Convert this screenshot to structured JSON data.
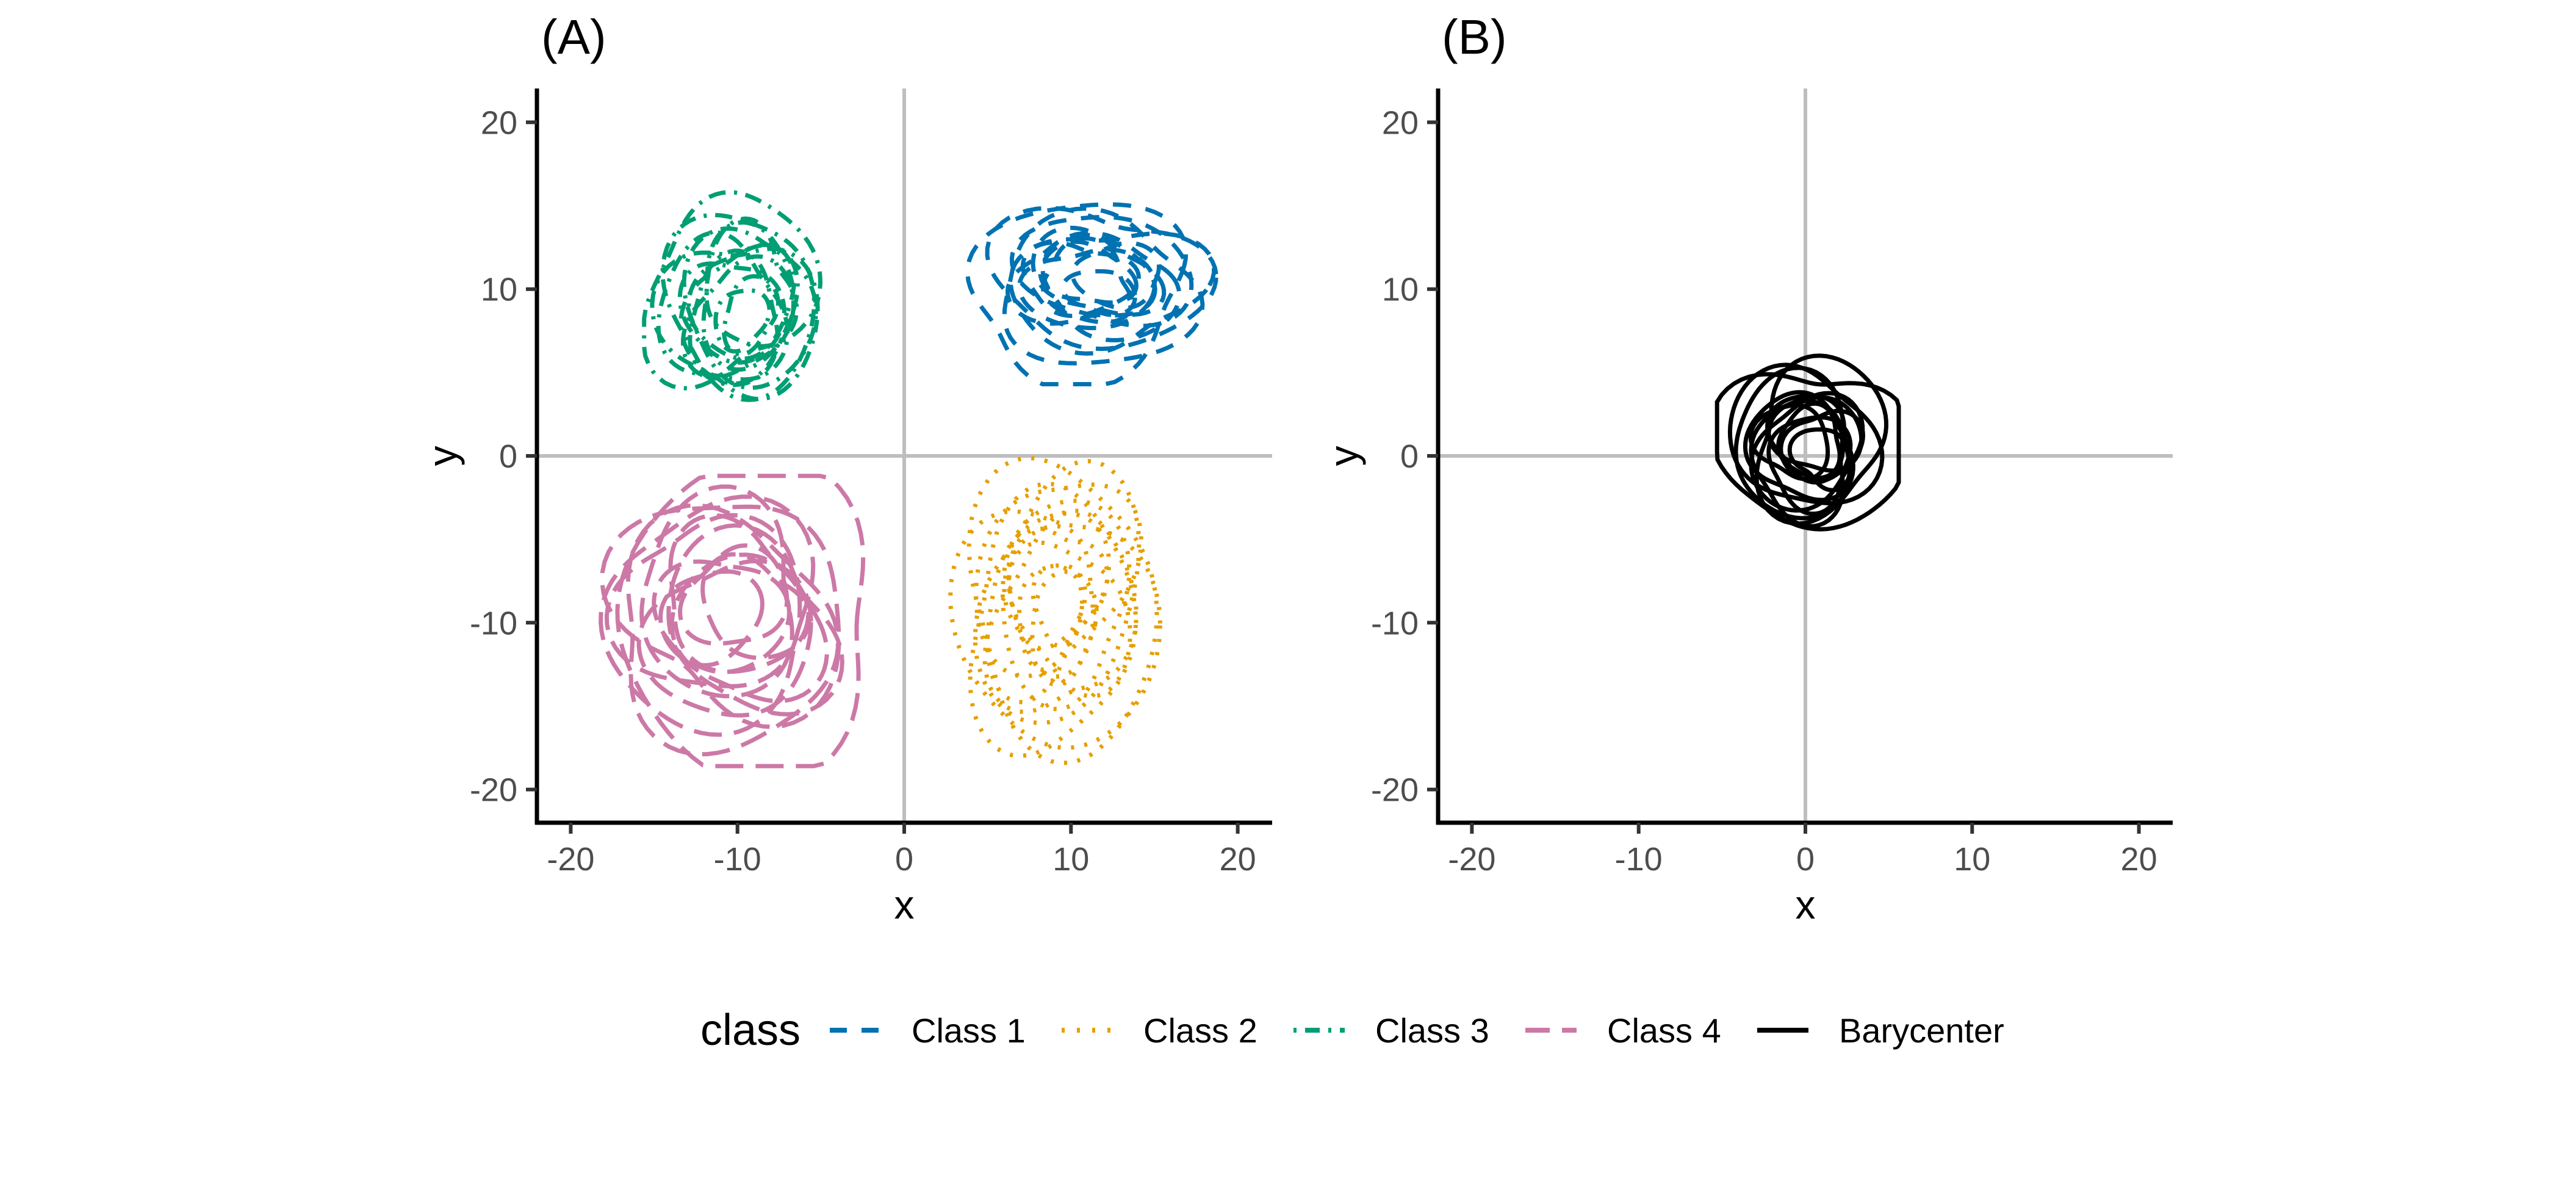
{
  "chart_data": [
    {
      "panel": "A",
      "type": "line",
      "title": "(A)",
      "xlabel": "x",
      "ylabel": "y",
      "xlim": [
        -22,
        22
      ],
      "ylim": [
        -22,
        22
      ],
      "xticks": [
        -20,
        -10,
        0,
        10,
        20
      ],
      "yticks": [
        -20,
        -10,
        0,
        10,
        20
      ],
      "xtick_labels": [
        "-20",
        "-10",
        "0",
        "10",
        "20"
      ],
      "ytick_labels": [
        "-20",
        "-10",
        "0",
        "10",
        "20"
      ],
      "reference_lines": {
        "x": 0,
        "y": 0
      },
      "grid": false,
      "series": [
        {
          "name": "Class 1",
          "linetype": "dashed",
          "color": "#0072B2",
          "n_curves": 14,
          "center": [
            10,
            10
          ],
          "radius": [
            5,
            5.5
          ],
          "xrange": [
            3.5,
            20
          ],
          "yrange": [
            4.3,
            16.3
          ],
          "seed": 11
        },
        {
          "name": "Class 2",
          "linetype": "dotted",
          "color": "#E69F00",
          "n_curves": 14,
          "center": [
            10,
            -8.5
          ],
          "radius": [
            5.2,
            6.5
          ],
          "xrange": [
            2.6,
            15.7
          ],
          "yrange": [
            -18.4,
            0.9
          ],
          "seed": 23
        },
        {
          "name": "Class 3",
          "linetype": "dotdash",
          "color": "#009E73",
          "n_curves": 14,
          "center": [
            -10,
            9.5
          ],
          "radius": [
            4.3,
            5.5
          ],
          "xrange": [
            -15.6,
            -4.5
          ],
          "yrange": [
            2.2,
            15.9
          ],
          "seed": 37
        },
        {
          "name": "Class 4",
          "linetype": "longdash",
          "color": "#CC79A7",
          "n_curves": 14,
          "center": [
            -10.5,
            -10
          ],
          "radius": [
            6.5,
            7.2
          ],
          "xrange": [
            -19,
            -1.6
          ],
          "yrange": [
            -18.6,
            -1.2
          ],
          "seed": 51
        }
      ]
    },
    {
      "panel": "B",
      "type": "line",
      "title": "(B)",
      "xlabel": "x",
      "ylabel": "y",
      "xlim": [
        -22,
        22
      ],
      "ylim": [
        -22,
        22
      ],
      "xticks": [
        -20,
        -10,
        0,
        10,
        20
      ],
      "yticks": [
        -20,
        -10,
        0,
        10,
        20
      ],
      "xtick_labels": [
        "-20",
        "-10",
        "0",
        "10",
        "20"
      ],
      "ytick_labels": [
        "-20",
        "-10",
        "0",
        "10",
        "20"
      ],
      "reference_lines": {
        "x": 0,
        "y": 0
      },
      "grid": false,
      "series": [
        {
          "name": "Barycenter",
          "linetype": "solid",
          "color": "#000000",
          "n_curves": 14,
          "center": [
            0,
            0
          ],
          "radius": [
            4.2,
            4.5
          ],
          "xrange": [
            -5.3,
            5.6
          ],
          "yrange": [
            -5.2,
            6.1
          ],
          "seed": 77
        }
      ]
    }
  ],
  "legend": {
    "title": "class",
    "position": "bottom",
    "items": [
      {
        "label": "Class 1",
        "color": "#0072B2",
        "linetype": "dashed"
      },
      {
        "label": "Class 2",
        "color": "#E69F00",
        "linetype": "dotted"
      },
      {
        "label": "Class 3",
        "color": "#009E73",
        "linetype": "dotdash"
      },
      {
        "label": "Class 4",
        "color": "#CC79A7",
        "linetype": "longdash"
      },
      {
        "label": "Barycenter",
        "color": "#000000",
        "linetype": "solid"
      }
    ]
  }
}
